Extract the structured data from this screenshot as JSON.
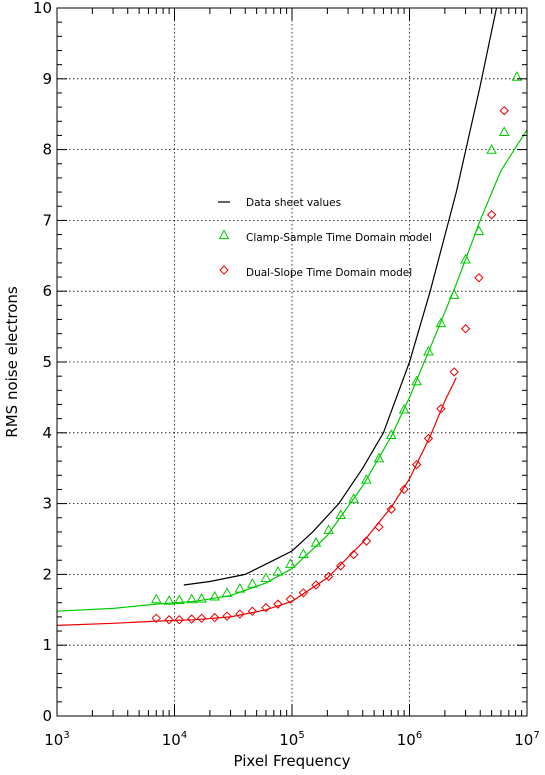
{
  "chart_data": {
    "type": "line",
    "title": "",
    "xlabel": "Pixel Frequency",
    "ylabel": "RMS noise electrons",
    "xscale": "log",
    "xlim": [
      1000,
      10000000
    ],
    "ylim": [
      0,
      10
    ],
    "x_tick_labels": [
      {
        "base": "10",
        "exp": "3"
      },
      {
        "base": "10",
        "exp": "4"
      },
      {
        "base": "10",
        "exp": "5"
      },
      {
        "base": "10",
        "exp": "6"
      },
      {
        "base": "10",
        "exp": "7"
      }
    ],
    "x_ticks": [
      1000,
      10000,
      100000,
      1000000,
      10000000
    ],
    "y_ticks": [
      0,
      1,
      2,
      3,
      4,
      5,
      6,
      7,
      8,
      9,
      10
    ],
    "y_tick_labels": [
      "0",
      "1",
      "2",
      "3",
      "4",
      "5",
      "6",
      "7",
      "8",
      "9",
      "10"
    ],
    "grid": true,
    "legend_position": "center-left",
    "series": [
      {
        "name": "Data sheet values",
        "style": "line",
        "color": "#000000",
        "x": [
          12000,
          20000,
          40000,
          70000,
          100000,
          150000,
          250000,
          400000,
          600000,
          1000000,
          1500000,
          2500000,
          4000000,
          6000000,
          7000000
        ],
        "y": [
          1.85,
          1.9,
          2.0,
          2.2,
          2.33,
          2.6,
          3.0,
          3.5,
          4.0,
          5.0,
          6.0,
          7.4,
          8.9,
          10.3,
          11.0
        ]
      },
      {
        "name": "Clamp-Sample Time Domain model",
        "style": "markers",
        "marker": "triangle",
        "color": "#00cc00",
        "x": [
          7000,
          9000,
          11000,
          14000,
          17000,
          22000,
          28000,
          36000,
          46000,
          60000,
          76000,
          97000,
          125000,
          160000,
          205000,
          260000,
          335000,
          430000,
          550000,
          700000,
          900000,
          1150000,
          1450000,
          1850000,
          2400000,
          3000000,
          3900000,
          5000000,
          6400000,
          8200000
        ],
        "y": [
          1.65,
          1.63,
          1.64,
          1.65,
          1.66,
          1.69,
          1.74,
          1.8,
          1.87,
          1.95,
          2.04,
          2.15,
          2.29,
          2.45,
          2.63,
          2.84,
          3.07,
          3.34,
          3.64,
          3.97,
          4.33,
          4.73,
          5.15,
          5.55,
          5.95,
          6.45,
          6.85,
          8.0,
          8.25,
          9.03
        ]
      },
      {
        "name": "Clamp-Sample Time Domain model (fit)",
        "style": "line",
        "color": "#00cc00",
        "x": [
          1000,
          3000,
          7000,
          15000,
          30000,
          60000,
          100000,
          200000,
          400000,
          700000,
          1000000,
          1500000,
          2500000,
          4000000,
          6000000,
          10000000
        ],
        "y": [
          1.48,
          1.52,
          1.58,
          1.62,
          1.7,
          1.88,
          2.08,
          2.55,
          3.25,
          3.95,
          4.5,
          5.2,
          6.1,
          7.0,
          7.7,
          8.28
        ]
      },
      {
        "name": "Dual-Slope Time Domain model",
        "style": "markers",
        "marker": "diamond",
        "color": "#ee0000",
        "x": [
          7000,
          9000,
          11000,
          14000,
          17000,
          22000,
          28000,
          36000,
          46000,
          60000,
          76000,
          97000,
          125000,
          160000,
          205000,
          260000,
          335000,
          430000,
          550000,
          700000,
          900000,
          1150000,
          1450000,
          1850000,
          2400000,
          3000000,
          3900000,
          5000000,
          6400000
        ],
        "y": [
          1.38,
          1.36,
          1.36,
          1.37,
          1.38,
          1.39,
          1.41,
          1.44,
          1.48,
          1.53,
          1.58,
          1.65,
          1.74,
          1.85,
          1.97,
          2.12,
          2.28,
          2.47,
          2.67,
          2.92,
          3.2,
          3.55,
          3.92,
          4.34,
          4.86,
          5.47,
          6.19,
          7.08,
          8.55
        ]
      },
      {
        "name": "Dual-Slope Time Domain model (fit)",
        "style": "line",
        "color": "#ee0000",
        "x": [
          1000,
          3000,
          7000,
          15000,
          30000,
          60000,
          100000,
          200000,
          400000,
          700000,
          1000000,
          1500000,
          2000000,
          2500000
        ],
        "y": [
          1.28,
          1.31,
          1.34,
          1.36,
          1.4,
          1.5,
          1.62,
          1.95,
          2.45,
          2.95,
          3.35,
          3.95,
          4.45,
          4.78
        ]
      }
    ],
    "legend": [
      {
        "label": "Data sheet values",
        "symbol": "line",
        "color": "#000000"
      },
      {
        "label": "Clamp-Sample Time Domain model",
        "symbol": "triangle",
        "color": "#00cc00"
      },
      {
        "label": "Dual-Slope Time Domain model",
        "symbol": "diamond",
        "color": "#ee0000"
      }
    ]
  }
}
